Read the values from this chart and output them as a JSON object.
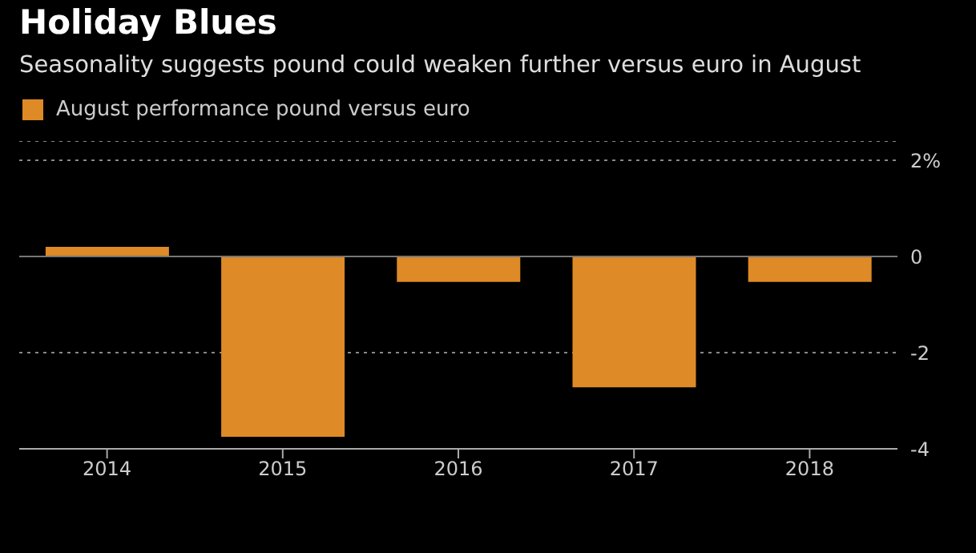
{
  "chart_data": {
    "type": "bar",
    "title": "Holiday Blues",
    "subtitle": "Seasonality suggests pound could weaken further versus euro in August",
    "categories": [
      "2014",
      "2015",
      "2016",
      "2017",
      "2018"
    ],
    "series": [
      {
        "name": "August performance pound versus euro",
        "color": "#de8a26",
        "values": [
          0.2,
          -3.75,
          -0.53,
          -2.72,
          -0.53
        ]
      }
    ],
    "ylim": [
      -4,
      2.4
    ],
    "yticks": [
      {
        "value": 2,
        "label": "2%"
      },
      0,
      -2,
      -4
    ],
    "grid": "y",
    "legend": "top left",
    "ref_lines": [
      {
        "axis": "y",
        "value": 0,
        "color": "#777777"
      }
    ]
  }
}
